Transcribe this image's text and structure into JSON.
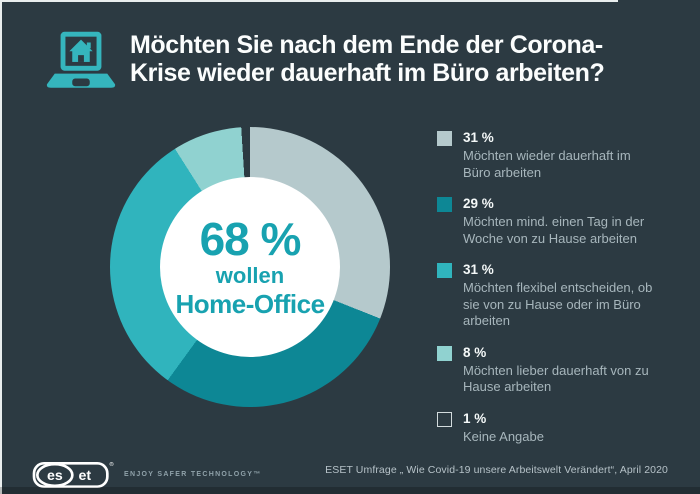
{
  "header": {
    "title_line1": "Möchten Sie nach dem Ende der Corona-",
    "title_line2": "Krise wieder dauerhaft im Büro arbeiten?",
    "icon": "laptop-home-icon"
  },
  "chart_data": {
    "type": "pie",
    "subtype": "donut",
    "title": "Möchten Sie nach dem Ende der Corona-Krise wieder dauerhaft im Büro arbeiten?",
    "direction": "clockwise",
    "start_angle_deg": 0,
    "donut_hole_ratio": 0.64,
    "legend_position": "right",
    "center_label": {
      "value": "68 %",
      "line2": "wollen",
      "line3": "Home-Office"
    },
    "slices": [
      {
        "value": 31,
        "percent_label": "31 %",
        "color": "#b5c9cc",
        "outline": false,
        "label": "Möchten wieder dauerhaft im Büro arbeiten",
        "lines": [
          "Möchten wieder dauerhaft im",
          "Büro arbeiten"
        ]
      },
      {
        "value": 29,
        "percent_label": "29 %",
        "color": "#0d8795",
        "outline": false,
        "label": "Möchten mind. einen Tag in der Woche von zu Hause arbeiten",
        "lines": [
          "Möchten mind. einen Tag in der",
          "Woche von zu Hause arbeiten"
        ]
      },
      {
        "value": 31,
        "percent_label": "31 %",
        "color": "#30b4bd",
        "outline": false,
        "label": "Möchten flexibel entscheiden, ob sie von zu Hause oder im Büro arbeiten",
        "lines": [
          "Möchten flexibel entscheiden, ob",
          "sie von zu Hause oder im Büro",
          "arbeiten"
        ]
      },
      {
        "value": 8,
        "percent_label": "8 %",
        "color": "#90d2d0",
        "outline": false,
        "label": "Möchten lieber dauerhaft von zu Hause arbeiten",
        "lines": [
          "Möchten lieber dauerhaft von zu",
          "Hause arbeiten"
        ]
      },
      {
        "value": 1,
        "percent_label": "1 %",
        "color": "#2c3a42",
        "outline": true,
        "label": "Keine Angabe",
        "lines": [
          "Keine Angabe"
        ]
      }
    ]
  },
  "footer": {
    "logo_text_left": "es",
    "logo_text_right": "et",
    "logo_reg_mark": "®",
    "tagline": "ENJOY SAFER TECHNOLOGY™",
    "source": "ESET Umfrage „ Wie Covid-19 unsere Arbeitswelt Verändert“, April 2020"
  },
  "colors": {
    "background": "#2c3a42",
    "accent_teal": "#35b5bd",
    "center_text": "#18a2b0",
    "title_text": "#fbfdfd",
    "legend_text": "#a7b6bc"
  }
}
